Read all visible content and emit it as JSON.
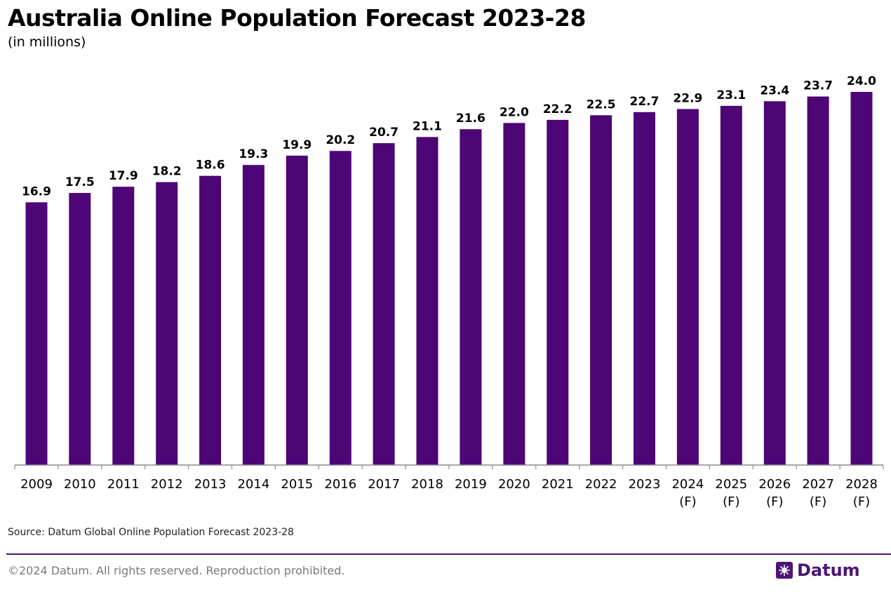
{
  "header": {
    "title": "Australia Online Population Forecast 2023-28",
    "subtitle": "(in millions)"
  },
  "chart_data": {
    "type": "bar",
    "title": "Australia Online Population Forecast 2023-28",
    "subtitle": "(in millions)",
    "categories": [
      "2009",
      "2010",
      "2011",
      "2012",
      "2013",
      "2014",
      "2015",
      "2016",
      "2017",
      "2018",
      "2019",
      "2020",
      "2021",
      "2022",
      "2023",
      "2024 (F)",
      "2025 (F)",
      "2026 (F)",
      "2027 (F)",
      "2028 (F)"
    ],
    "values": [
      16.9,
      17.5,
      17.9,
      18.2,
      18.6,
      19.3,
      19.9,
      20.2,
      20.7,
      21.1,
      21.6,
      22.0,
      22.2,
      22.5,
      22.7,
      22.9,
      23.1,
      23.4,
      23.7,
      24.0
    ],
    "value_labels": [
      "16.9",
      "17.5",
      "17.9",
      "18.2",
      "18.6",
      "19.3",
      "19.9",
      "20.2",
      "20.7",
      "21.1",
      "21.6",
      "22.0",
      "22.2",
      "22.5",
      "22.7",
      "22.9",
      "23.1",
      "23.4",
      "23.7",
      "24.0"
    ],
    "ylim": [
      0,
      24
    ],
    "grid": false,
    "legend": "none",
    "bar_color": "#4c0675"
  },
  "footer": {
    "source": "Source: Datum Global Online Population Forecast 2023-28",
    "copyright": "©2024 Datum. All rights reserved. Reproduction prohibited.",
    "brand_name": "Datum",
    "brand_color": "#4c1473",
    "brand_icon": "datum-star-icon"
  }
}
